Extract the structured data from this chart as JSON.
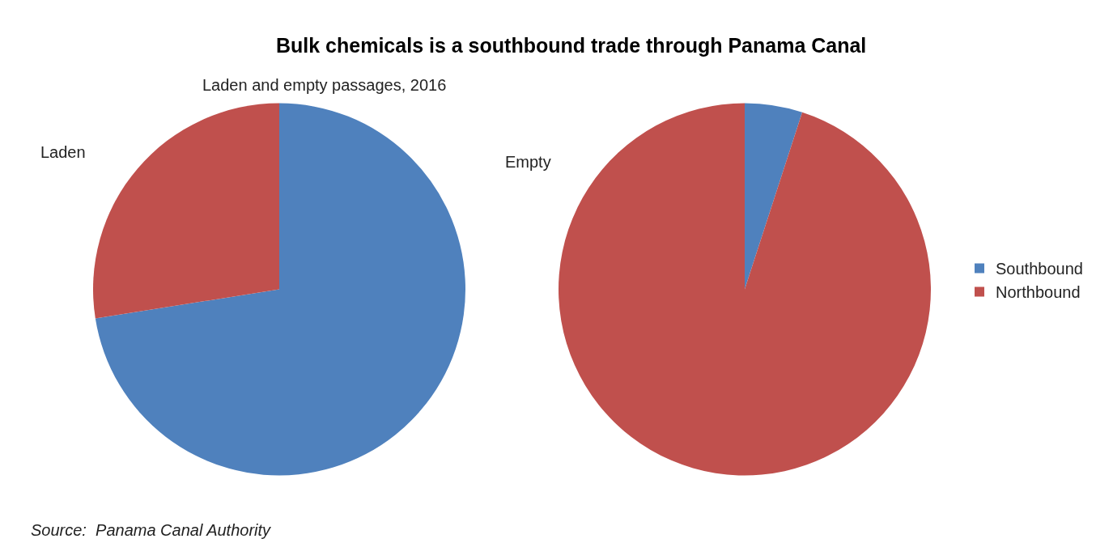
{
  "chart_data": [
    {
      "type": "pie",
      "title": "Bulk chemicals is a southbound trade through Panama Canal",
      "subtitle": "Laden and empty passages, 2016",
      "annotations": [
        "Laden"
      ],
      "categories": [
        "Southbound",
        "Northbound"
      ],
      "values": [
        72.5,
        27.5
      ],
      "colors": [
        "#4f81bd",
        "#c0504d"
      ],
      "legend": "right"
    },
    {
      "type": "pie",
      "annotations": [
        "Empty",
        "Source:  Panama Canal Authority"
      ],
      "categories": [
        null,
        null
      ],
      "values": [
        5,
        95
      ],
      "colors": [
        "#4f81bd",
        "#c0504d"
      ]
    }
  ]
}
